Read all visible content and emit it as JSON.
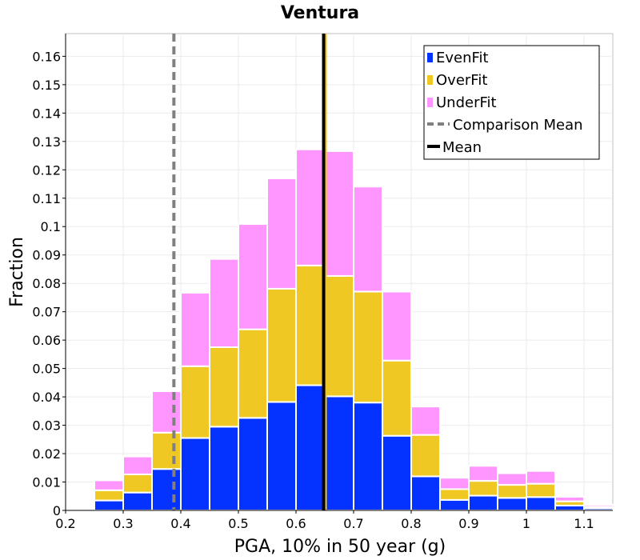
{
  "chart_data": {
    "type": "bar",
    "stacked": true,
    "title": "Ventura",
    "xlabel": "PGA, 10% in 50 year (g)",
    "ylabel": "Fraction",
    "xlim": [
      0.2,
      1.15
    ],
    "ylim": [
      0,
      0.168
    ],
    "grid": true,
    "legend_position": "top-right",
    "x_ticks": [
      "0.2",
      "0.3",
      "0.4",
      "0.5",
      "0.6",
      "0.7",
      "0.8",
      "0.9",
      "1",
      "1.1"
    ],
    "y_ticks": [
      "0",
      "0.01",
      "0.02",
      "0.03",
      "0.04",
      "0.05",
      "0.06",
      "0.07",
      "0.08",
      "0.09",
      "0.1",
      "0.11",
      "0.12",
      "0.13",
      "0.14",
      "0.15",
      "0.16"
    ],
    "bin_width": 0.05,
    "x": [
      0.275,
      0.325,
      0.375,
      0.425,
      0.475,
      0.525,
      0.575,
      0.625,
      0.675,
      0.725,
      0.775,
      0.825,
      0.875,
      0.925,
      0.975,
      1.025,
      1.075,
      1.125
    ],
    "series": [
      {
        "name": "EvenFit",
        "color": "#0433ff",
        "values": [
          0.0035,
          0.0063,
          0.0146,
          0.0255,
          0.0295,
          0.0326,
          0.0382,
          0.0441,
          0.0402,
          0.038,
          0.0263,
          0.012,
          0.0037,
          0.0052,
          0.0044,
          0.0047,
          0.0017,
          0.0007
        ]
      },
      {
        "name": "OverFit",
        "color": "#f0c824",
        "values": [
          0.0036,
          0.0064,
          0.0128,
          0.0253,
          0.028,
          0.0312,
          0.0399,
          0.0422,
          0.0424,
          0.0391,
          0.0265,
          0.0146,
          0.0038,
          0.0052,
          0.0046,
          0.0047,
          0.0015,
          0.0006
        ]
      },
      {
        "name": "UnderFit",
        "color": "#ff96ff",
        "values": [
          0.0035,
          0.0063,
          0.0146,
          0.0259,
          0.0311,
          0.0371,
          0.0389,
          0.0409,
          0.044,
          0.037,
          0.0243,
          0.01,
          0.004,
          0.0053,
          0.0041,
          0.0045,
          0.0016,
          0.0007
        ]
      }
    ],
    "vertical_lines": [
      {
        "name": "Comparison Mean",
        "x": 0.388,
        "color": "#808080",
        "style": "dashed"
      },
      {
        "name": "Mean",
        "x": 0.648,
        "color": "#000000",
        "style": "solid"
      }
    ],
    "mean_marker_color": "#f0c824"
  }
}
